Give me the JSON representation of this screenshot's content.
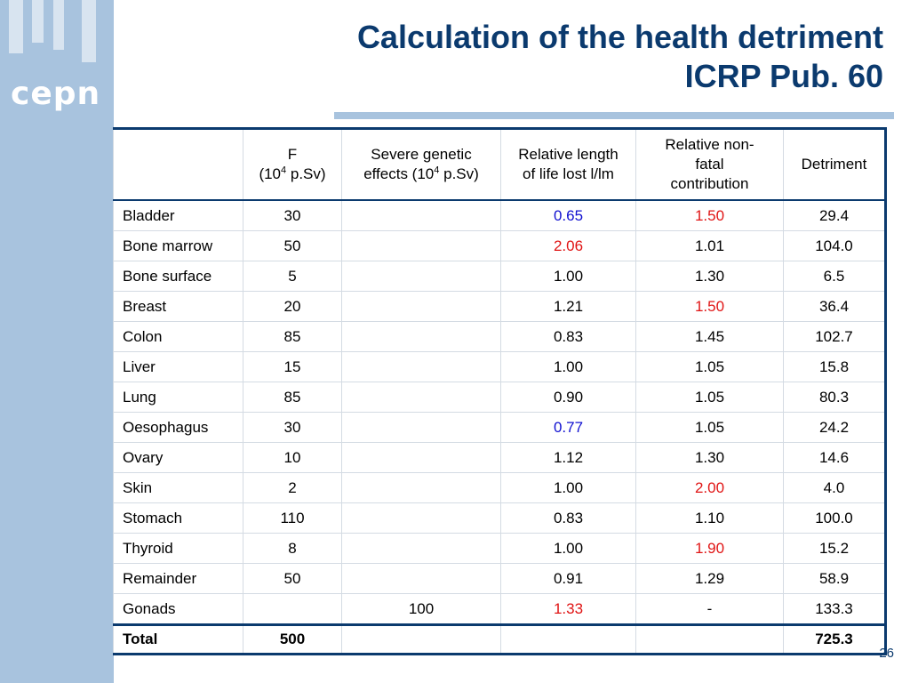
{
  "logo": "cepn",
  "title": {
    "line1": "Calculation of the health detriment",
    "line2": "ICRP Pub. 60"
  },
  "colors": {
    "title": "#0b3a6e",
    "sidebar": "#a8c3de",
    "blue_value": "#1010d0",
    "red_value": "#e01414"
  },
  "table": {
    "headers": {
      "organ": "",
      "f_line1": "F",
      "f_line2_pre": "(10",
      "f_line2_sup": "4",
      "f_line2_post": " p.Sv)",
      "genetic_line1": "Severe genetic",
      "genetic_line2_pre": "effects (10",
      "genetic_line2_sup": "4",
      "genetic_line2_post": " p.Sv)",
      "length_line1": "Relative length",
      "length_line2": "of life lost l/lm",
      "nonfatal_line1": "Relative non-",
      "nonfatal_line2": "fatal",
      "nonfatal_line3": "contribution",
      "detriment": "Detriment"
    },
    "rows": [
      {
        "organ": "Bladder",
        "f": "30",
        "genetic": "",
        "length": "0.65",
        "length_color": "blue",
        "nonfatal": "1.50",
        "nonfatal_color": "red",
        "detriment": "29.4"
      },
      {
        "organ": "Bone marrow",
        "f": "50",
        "genetic": "",
        "length": "2.06",
        "length_color": "red",
        "nonfatal": "1.01",
        "nonfatal_color": "",
        "detriment": "104.0"
      },
      {
        "organ": "Bone surface",
        "f": "5",
        "genetic": "",
        "length": "1.00",
        "length_color": "",
        "nonfatal": "1.30",
        "nonfatal_color": "",
        "detriment": "6.5"
      },
      {
        "organ": "Breast",
        "f": "20",
        "genetic": "",
        "length": "1.21",
        "length_color": "",
        "nonfatal": "1.50",
        "nonfatal_color": "red",
        "detriment": "36.4"
      },
      {
        "organ": "Colon",
        "f": "85",
        "genetic": "",
        "length": "0.83",
        "length_color": "",
        "nonfatal": "1.45",
        "nonfatal_color": "",
        "detriment": "102.7"
      },
      {
        "organ": "Liver",
        "f": "15",
        "genetic": "",
        "length": "1.00",
        "length_color": "",
        "nonfatal": "1.05",
        "nonfatal_color": "",
        "detriment": "15.8"
      },
      {
        "organ": "Lung",
        "f": "85",
        "genetic": "",
        "length": "0.90",
        "length_color": "",
        "nonfatal": "1.05",
        "nonfatal_color": "",
        "detriment": "80.3"
      },
      {
        "organ": "Oesophagus",
        "f": "30",
        "genetic": "",
        "length": "0.77",
        "length_color": "blue",
        "nonfatal": "1.05",
        "nonfatal_color": "",
        "detriment": "24.2"
      },
      {
        "organ": "Ovary",
        "f": "10",
        "genetic": "",
        "length": "1.12",
        "length_color": "",
        "nonfatal": "1.30",
        "nonfatal_color": "",
        "detriment": "14.6"
      },
      {
        "organ": "Skin",
        "f": "2",
        "genetic": "",
        "length": "1.00",
        "length_color": "",
        "nonfatal": "2.00",
        "nonfatal_color": "red",
        "detriment": "4.0"
      },
      {
        "organ": "Stomach",
        "f": "110",
        "genetic": "",
        "length": "0.83",
        "length_color": "",
        "nonfatal": "1.10",
        "nonfatal_color": "",
        "detriment": "100.0"
      },
      {
        "organ": "Thyroid",
        "f": "8",
        "genetic": "",
        "length": "1.00",
        "length_color": "",
        "nonfatal": "1.90",
        "nonfatal_color": "red",
        "detriment": "15.2"
      },
      {
        "organ": "Remainder",
        "f": "50",
        "genetic": "",
        "length": "0.91",
        "length_color": "",
        "nonfatal": "1.29",
        "nonfatal_color": "",
        "detriment": "58.9"
      },
      {
        "organ": "Gonads",
        "f": "",
        "genetic": "100",
        "length": "1.33",
        "length_color": "red",
        "nonfatal": "-",
        "nonfatal_color": "",
        "detriment": "133.3"
      }
    ],
    "total": {
      "label": "Total",
      "f": "500",
      "detriment": "725.3"
    }
  },
  "page_number": "26"
}
